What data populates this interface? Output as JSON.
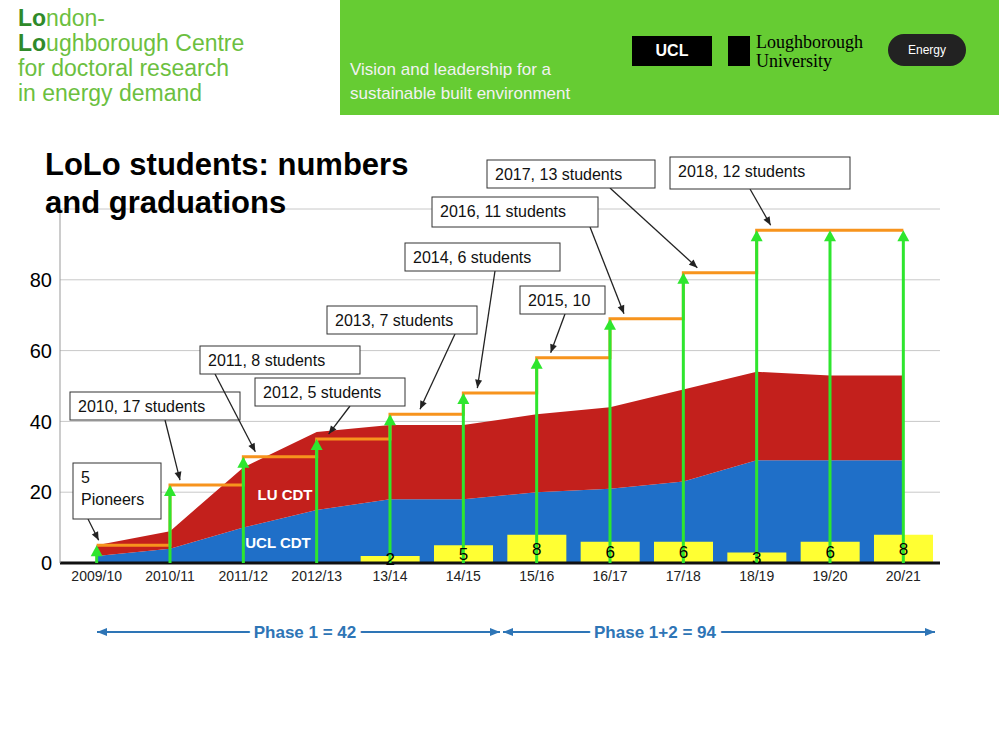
{
  "header": {
    "org_lines": [
      "London-",
      "Loughborough Centre",
      "for doctoral research",
      "in energy demand"
    ],
    "tagline_lines": [
      "Vision and leadership for a",
      "sustainable built environment"
    ],
    "logos": [
      "UCL",
      "Loughborough",
      "University",
      "Energy"
    ]
  },
  "chart_data": {
    "type": "composed",
    "title": "LoLo students: numbers and graduations",
    "categories": [
      "2009/10",
      "2010/11",
      "2011/12",
      "2012/13",
      "13/14",
      "14/15",
      "15/16",
      "16/17",
      "17/18",
      "18/19",
      "19/20",
      "20/21"
    ],
    "series": [
      {
        "name": "UCL CDT",
        "type": "area",
        "color": "#1f6fc8",
        "values": [
          2,
          4,
          10,
          15,
          18,
          18,
          20,
          21,
          23,
          29,
          29,
          29
        ]
      },
      {
        "name": "LU CDT",
        "type": "area",
        "color": "#c3201c",
        "values": [
          3,
          5,
          17,
          22,
          21,
          21,
          22,
          23,
          26,
          25,
          24,
          24
        ]
      },
      {
        "type": "bar",
        "color": "#ffff33",
        "data_labels": true,
        "values": [
          null,
          null,
          null,
          null,
          2,
          5,
          8,
          6,
          6,
          3,
          6,
          8
        ]
      },
      {
        "type": "line",
        "color": "#f7941d",
        "line_style": "step",
        "marker": "arrow",
        "values": [
          5,
          22,
          30,
          35,
          42,
          48,
          58,
          69,
          82,
          94,
          94,
          94
        ]
      }
    ],
    "stacked": true,
    "ylim": [
      0,
      100
    ],
    "yticks": [
      0,
      20,
      40,
      60,
      80
    ],
    "grid": true,
    "annotations": [
      {
        "text": "5 Pioneers",
        "x": "2009/10"
      },
      {
        "text": "2010, 17 students",
        "x": "2010/11"
      },
      {
        "text": "2011, 8 students",
        "x": "2011/12"
      },
      {
        "text": "2012, 5 students",
        "x": "2012/13"
      },
      {
        "text": "2013, 7 students",
        "x": "13/14"
      },
      {
        "text": "2014, 6 students",
        "x": "14/15"
      },
      {
        "text": "2015, 10",
        "x": "15/16"
      },
      {
        "text": "2016, 11 students",
        "x": "16/17"
      },
      {
        "text": "2017, 13 students",
        "x": "17/18"
      },
      {
        "text": "2018, 12 students",
        "x": "18/19"
      }
    ],
    "phases": [
      "Phase 1 = 42",
      "Phase 1+2 = 94"
    ]
  }
}
